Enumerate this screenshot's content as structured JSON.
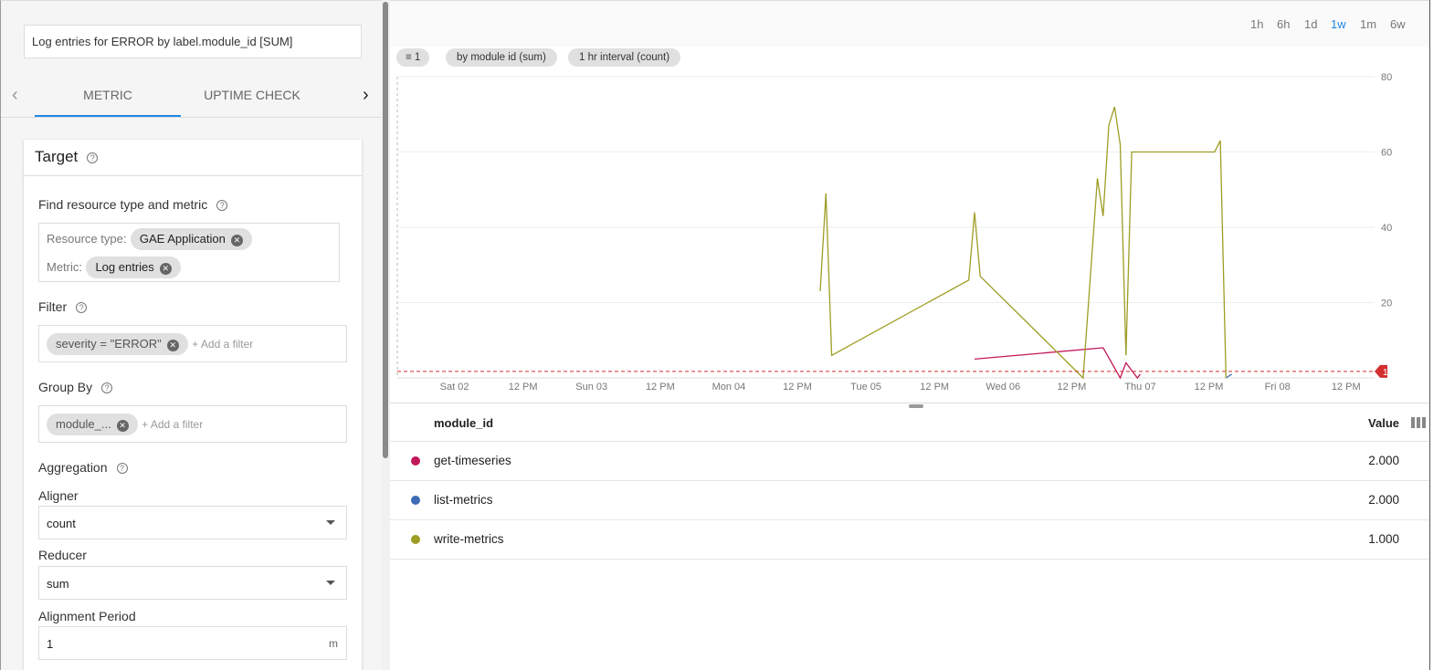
{
  "left": {
    "chart_title": "Log entries for ERROR by label.module_id [SUM]",
    "tabs": [
      {
        "label": "METRIC",
        "active": true
      },
      {
        "label": "UPTIME CHECK",
        "active": false
      }
    ],
    "target": {
      "heading": "Target",
      "find_label": "Find resource type and metric",
      "resource_type_label": "Resource type:",
      "resource_type_value": "GAE Application",
      "metric_label": "Metric:",
      "metric_value": "Log entries",
      "filter_label": "Filter",
      "filter_chip": "severity = \"ERROR\"",
      "filter_placeholder": "+ Add a filter",
      "group_by_label": "Group By",
      "group_by_chip": "module_...",
      "group_by_placeholder": "+ Add a filter",
      "aggregation_label": "Aggregation",
      "aligner_label": "Aligner",
      "aligner_value": "count",
      "reducer_label": "Reducer",
      "reducer_value": "sum",
      "period_label": "Alignment Period",
      "period_value": "1",
      "period_unit": "m"
    }
  },
  "time_ranges": [
    {
      "label": "1h"
    },
    {
      "label": "6h"
    },
    {
      "label": "1d"
    },
    {
      "label": "1w",
      "active": true
    },
    {
      "label": "1m"
    },
    {
      "label": "6w"
    }
  ],
  "pills": {
    "filter_count": "1",
    "group": "by module id (sum)",
    "interval": "1 hr interval (count)"
  },
  "chart_data": {
    "type": "line",
    "x_ticks": [
      "Sat 02",
      "12 PM",
      "Sun 03",
      "12 PM",
      "Mon 04",
      "12 PM",
      "Tue 05",
      "12 PM",
      "Wed 06",
      "12 PM",
      "Thu 07",
      "12 PM",
      "Fri 08",
      "12 PM"
    ],
    "xlim": [
      "Fri 01 14:00",
      "Fri 08 17:00"
    ],
    "y_ticks": [
      "20",
      "40",
      "60",
      "80"
    ],
    "ylim": [
      0,
      80
    ],
    "grid": true,
    "threshold": {
      "value": 1,
      "label": "1",
      "color": "#d32f2f"
    },
    "series": [
      {
        "name": "get-timeseries",
        "color": "#c2185b",
        "points": [
          [
            "Tue 05 19:00",
            5
          ],
          [
            "Wed 06 17:30",
            8
          ],
          [
            "Wed 06 20:30",
            0
          ],
          [
            "Wed 06 21:30",
            4
          ],
          [
            "Wed 06 23:30",
            0
          ],
          [
            "Thu 07 00:00",
            1
          ]
        ]
      },
      {
        "name": "list-metrics",
        "color": "#3f6bb5",
        "points": [
          [
            "Thu 07 15:00",
            0
          ],
          [
            "Thu 07 16:00",
            1
          ]
        ]
      },
      {
        "name": "write-metrics",
        "color": "#9e9d24",
        "points": [
          [
            "Mon 04 16:00",
            23
          ],
          [
            "Mon 04 17:00",
            49
          ],
          [
            "Mon 04 18:00",
            6
          ],
          [
            "Tue 05 18:00",
            26
          ],
          [
            "Tue 05 19:00",
            44
          ],
          [
            "Tue 05 20:00",
            27
          ],
          [
            "Wed 06 14:00",
            0
          ],
          [
            "Wed 06 16:30",
            53
          ],
          [
            "Wed 06 17:30",
            43
          ],
          [
            "Wed 06 18:30",
            67
          ],
          [
            "Wed 06 19:30",
            72
          ],
          [
            "Wed 06 20:30",
            62
          ],
          [
            "Wed 06 21:30",
            6
          ],
          [
            "Wed 06 22:30",
            60
          ],
          [
            "Thu 07 13:00",
            60
          ],
          [
            "Thu 07 14:00",
            63
          ],
          [
            "Thu 07 15:00",
            0
          ]
        ]
      }
    ]
  },
  "table": {
    "col_name": "module_id",
    "col_value": "Value",
    "rows": [
      {
        "name": "get-timeseries",
        "value": "2.000",
        "color": "#c2185b"
      },
      {
        "name": "list-metrics",
        "value": "2.000",
        "color": "#3f6bb5"
      },
      {
        "name": "write-metrics",
        "value": "1.000",
        "color": "#9e9d24"
      }
    ]
  }
}
